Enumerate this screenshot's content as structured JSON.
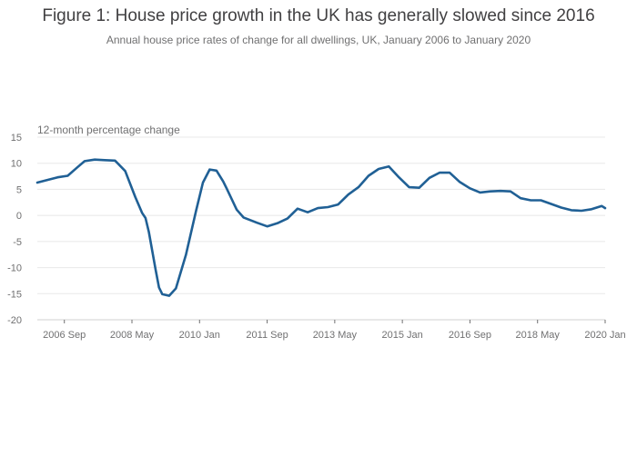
{
  "chart_data": {
    "type": "line",
    "title": "Figure 1: House price growth in the UK has generally slowed since 2016",
    "subtitle": "Annual house price rates of change for all dwellings, UK, January 2006 to January 2020",
    "ylabel": "12-month percentage change",
    "xlabel": "",
    "ylim": [
      -20,
      15
    ],
    "yticks": [
      15,
      10,
      5,
      0,
      -5,
      -10,
      -15,
      -20
    ],
    "xlim": [
      "2006-01",
      "2020-01"
    ],
    "xticks": [
      {
        "date": "2006-09",
        "label": "2006 Sep"
      },
      {
        "date": "2008-05",
        "label": "2008 May"
      },
      {
        "date": "2010-01",
        "label": "2010 Jan"
      },
      {
        "date": "2011-09",
        "label": "2011 Sep"
      },
      {
        "date": "2013-05",
        "label": "2013 May"
      },
      {
        "date": "2015-01",
        "label": "2015 Jan"
      },
      {
        "date": "2016-09",
        "label": "2016 Sep"
      },
      {
        "date": "2018-05",
        "label": "2018 May"
      },
      {
        "date": "2020-01",
        "label": "2020 Jan"
      }
    ],
    "grid": true,
    "line_color": "#206095",
    "series": [
      {
        "x": [
          "2006-01",
          "2006-04",
          "2006-07",
          "2006-10",
          "2007-01",
          "2007-03",
          "2007-06",
          "2007-09",
          "2007-12",
          "2008-03",
          "2008-06",
          "2008-08",
          "2008-09",
          "2008-10",
          "2008-12",
          "2009-01",
          "2009-02",
          "2009-04",
          "2009-06",
          "2009-09",
          "2009-12",
          "2010-02",
          "2010-04",
          "2010-06",
          "2010-08",
          "2010-09",
          "2010-12",
          "2011-02",
          "2011-06",
          "2011-09",
          "2011-12",
          "2012-03",
          "2012-06",
          "2012-09",
          "2012-12",
          "2013-03",
          "2013-06",
          "2013-09",
          "2013-12",
          "2014-03",
          "2014-06",
          "2014-09",
          "2014-12",
          "2015-03",
          "2015-06",
          "2015-09",
          "2015-12",
          "2016-03",
          "2016-06",
          "2016-09",
          "2016-12",
          "2017-03",
          "2017-06",
          "2017-09",
          "2017-12",
          "2018-03",
          "2018-06",
          "2018-09",
          "2018-12",
          "2019-03",
          "2019-06",
          "2019-09",
          "2019-12",
          "2020-01"
        ],
        "y": [
          6.3,
          6.8,
          7.3,
          7.6,
          9.3,
          10.4,
          10.7,
          10.6,
          10.5,
          8.5,
          3.5,
          0.5,
          -0.5,
          -3.2,
          -10.4,
          -13.8,
          -15.1,
          -15.4,
          -14.0,
          -7.5,
          1.0,
          6.3,
          8.8,
          8.6,
          6.5,
          5.2,
          1.1,
          -0.4,
          -1.4,
          -2.1,
          -1.5,
          -0.6,
          1.3,
          0.6,
          1.4,
          1.6,
          2.1,
          4.0,
          5.4,
          7.6,
          8.9,
          9.4,
          7.3,
          5.4,
          5.3,
          7.2,
          8.2,
          8.2,
          6.4,
          5.2,
          4.4,
          4.6,
          4.7,
          4.6,
          3.3,
          2.9,
          2.9,
          2.2,
          1.5,
          1.0,
          0.9,
          1.2,
          1.8,
          1.4
        ]
      }
    ]
  }
}
